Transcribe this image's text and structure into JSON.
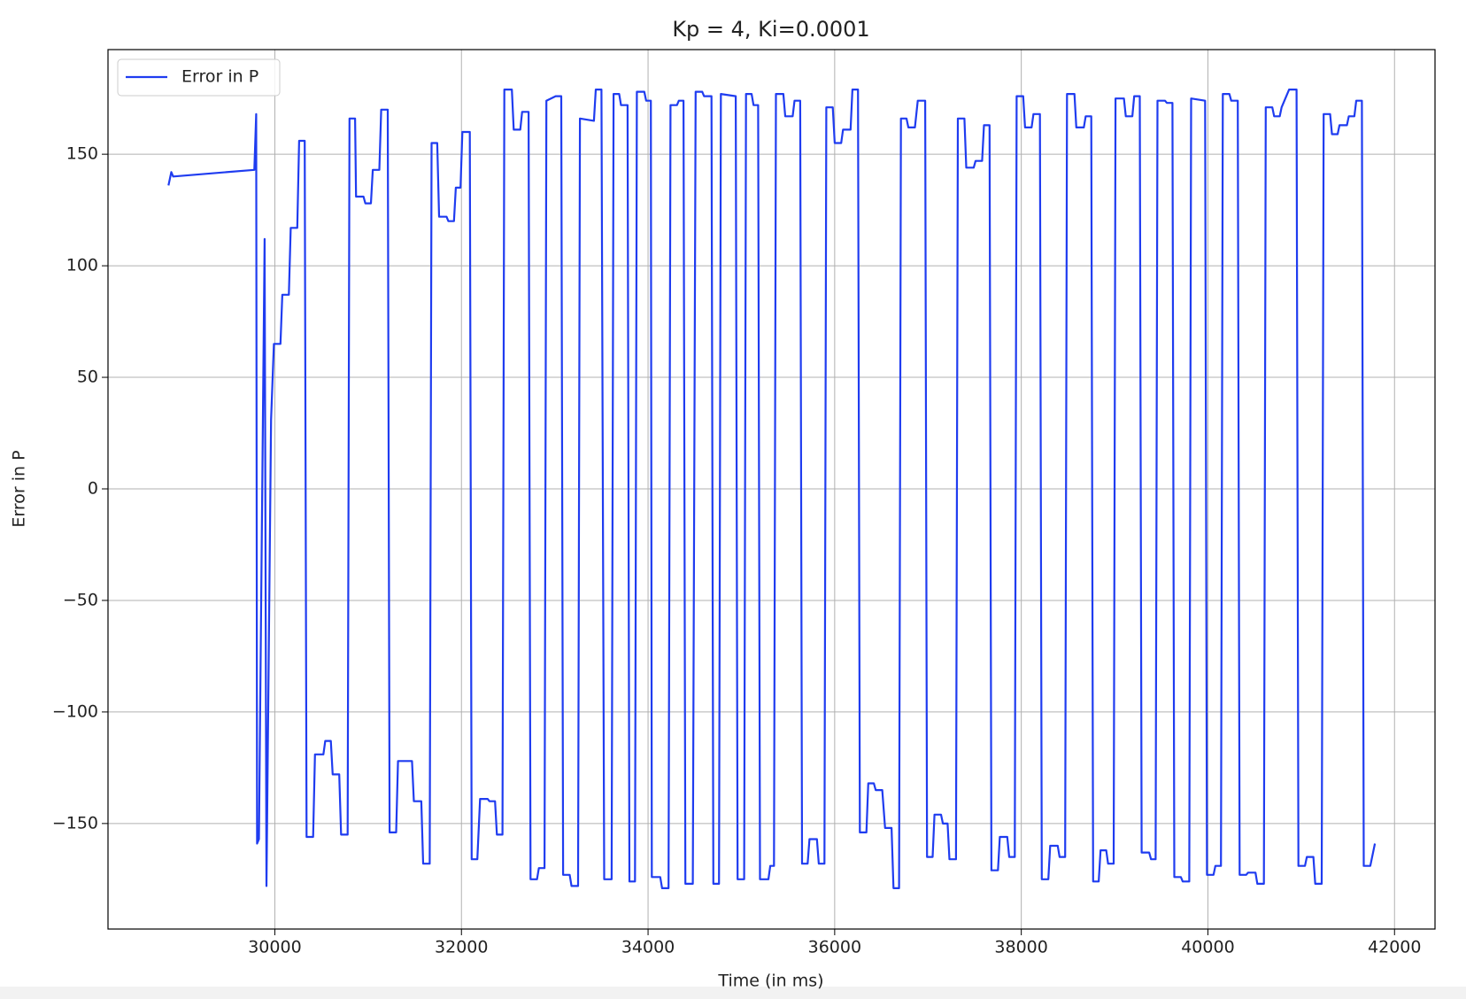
{
  "chart_data": {
    "type": "line",
    "title": "Kp = 4, Ki=0.0001",
    "x_label": "Time (in ms)",
    "y_label": "Error in P",
    "x": [
      28860,
      28890,
      28910,
      29780,
      29800,
      29810,
      29830,
      29890,
      29910,
      29960,
      29990,
      30060,
      30080,
      30150,
      30170,
      30240,
      30260,
      30320,
      30340,
      30410,
      30430,
      30520,
      30540,
      30600,
      30620,
      30690,
      30710,
      30780,
      30800,
      30860,
      30870,
      30950,
      30970,
      31030,
      31050,
      31120,
      31140,
      31210,
      31230,
      31300,
      31320,
      31470,
      31490,
      31570,
      31590,
      31660,
      31680,
      31740,
      31760,
      31840,
      31860,
      31920,
      31940,
      31990,
      32010,
      32090,
      32110,
      32170,
      32200,
      32280,
      32300,
      32360,
      32380,
      32440,
      32460,
      32540,
      32560,
      32630,
      32650,
      32720,
      32740,
      32810,
      32830,
      32890,
      32910,
      33010,
      33070,
      33090,
      33160,
      33180,
      33250,
      33270,
      33420,
      33440,
      33500,
      33530,
      33610,
      33630,
      33690,
      33710,
      33780,
      33800,
      33860,
      33880,
      33960,
      33980,
      34030,
      34040,
      34130,
      34150,
      34220,
      34240,
      34310,
      34330,
      34380,
      34400,
      34480,
      34510,
      34580,
      34600,
      34680,
      34700,
      34760,
      34780,
      34940,
      34960,
      35030,
      35050,
      35110,
      35130,
      35180,
      35200,
      35290,
      35310,
      35350,
      35370,
      35450,
      35470,
      35550,
      35570,
      35630,
      35650,
      35710,
      35730,
      35810,
      35830,
      35890,
      35910,
      35980,
      36000,
      36070,
      36090,
      36170,
      36190,
      36250,
      36270,
      36340,
      36360,
      36420,
      36440,
      36510,
      36540,
      36610,
      36630,
      36690,
      36710,
      36770,
      36790,
      36860,
      36890,
      36970,
      36990,
      37050,
      37070,
      37140,
      37160,
      37210,
      37230,
      37300,
      37320,
      37390,
      37410,
      37490,
      37510,
      37580,
      37600,
      37660,
      37680,
      37750,
      37770,
      37850,
      37870,
      37930,
      37950,
      38020,
      38040,
      38110,
      38130,
      38200,
      38220,
      38290,
      38310,
      38390,
      38410,
      38470,
      38490,
      38570,
      38590,
      38670,
      38690,
      38750,
      38770,
      38830,
      38850,
      38910,
      38930,
      38990,
      39010,
      39100,
      39120,
      39190,
      39210,
      39270,
      39290,
      39370,
      39390,
      39440,
      39460,
      39540,
      39560,
      39620,
      39640,
      39710,
      39730,
      39800,
      39820,
      39970,
      39990,
      40060,
      40080,
      40140,
      40160,
      40230,
      40250,
      40320,
      40340,
      40410,
      40430,
      40510,
      40530,
      40600,
      40620,
      40690,
      40710,
      40770,
      40790,
      40870,
      40950,
      40970,
      41040,
      41060,
      41130,
      41150,
      41220,
      41240,
      41310,
      41330,
      41390,
      41410,
      41490,
      41510,
      41570,
      41590,
      41650,
      41670,
      41740,
      41790
    ],
    "series": [
      {
        "name": "Error in P",
        "color": "#1f3cf0",
        "values": [
          136,
          142,
          140,
          143,
          168,
          -159,
          -157,
          112,
          -178,
          31,
          65,
          65,
          87,
          87,
          117,
          117,
          156,
          156,
          -156,
          -156,
          -119,
          -119,
          -113,
          -113,
          -128,
          -128,
          -155,
          -155,
          166,
          166,
          131,
          131,
          128,
          128,
          143,
          143,
          170,
          170,
          -154,
          -154,
          -122,
          -122,
          -140,
          -140,
          -168,
          -168,
          155,
          155,
          122,
          122,
          120,
          120,
          135,
          135,
          160,
          160,
          -166,
          -166,
          -139,
          -139,
          -140,
          -140,
          -155,
          -155,
          179,
          179,
          161,
          161,
          169,
          169,
          -175,
          -175,
          -170,
          -170,
          174,
          176,
          176,
          -173,
          -173,
          -178,
          -178,
          166,
          165,
          179,
          179,
          -175,
          -175,
          177,
          177,
          172,
          172,
          -176,
          -176,
          178,
          178,
          174,
          174,
          -174,
          -174,
          -179,
          -179,
          172,
          172,
          174,
          174,
          -177,
          -177,
          178,
          178,
          176,
          176,
          -177,
          -177,
          177,
          176,
          -175,
          -175,
          177,
          177,
          172,
          172,
          -175,
          -175,
          -169,
          -169,
          177,
          177,
          167,
          167,
          174,
          174,
          -168,
          -168,
          -157,
          -157,
          -168,
          -168,
          171,
          171,
          155,
          155,
          161,
          161,
          179,
          179,
          -154,
          -154,
          -132,
          -132,
          -135,
          -135,
          -152,
          -152,
          -179,
          -179,
          166,
          166,
          162,
          162,
          174,
          174,
          -165,
          -165,
          -146,
          -146,
          -150,
          -150,
          -166,
          -166,
          166,
          166,
          144,
          144,
          147,
          147,
          163,
          163,
          -171,
          -171,
          -156,
          -156,
          -165,
          -165,
          176,
          176,
          162,
          162,
          168,
          168,
          -175,
          -175,
          -160,
          -160,
          -165,
          -165,
          177,
          177,
          162,
          162,
          167,
          167,
          -176,
          -176,
          -162,
          -162,
          -168,
          -168,
          175,
          175,
          167,
          167,
          176,
          176,
          -163,
          -163,
          -166,
          -166,
          174,
          174,
          173,
          173,
          -174,
          -174,
          -176,
          -176,
          175,
          174,
          -173,
          -173,
          -169,
          -169,
          177,
          177,
          174,
          174,
          -173,
          -173,
          -172,
          -172,
          -177,
          -177,
          171,
          171,
          167,
          167,
          171,
          179,
          179,
          -169,
          -169,
          -165,
          -165,
          -177,
          -177,
          168,
          168,
          159,
          159,
          163,
          163,
          167,
          167,
          174,
          174,
          -169,
          -169,
          -159
        ]
      }
    ],
    "xlim": [
      28212,
      42434
    ],
    "xticks": [
      30000,
      32000,
      34000,
      36000,
      38000,
      40000,
      42000
    ],
    "ylim": [
      -197.3,
      196.9
    ],
    "yticks": [
      {
        "value": -150,
        "label": "−150"
      },
      {
        "value": -100,
        "label": "−100"
      },
      {
        "value": -50,
        "label": "−50"
      },
      0,
      50,
      100,
      150
    ],
    "grid": true,
    "legend": "upper left"
  }
}
